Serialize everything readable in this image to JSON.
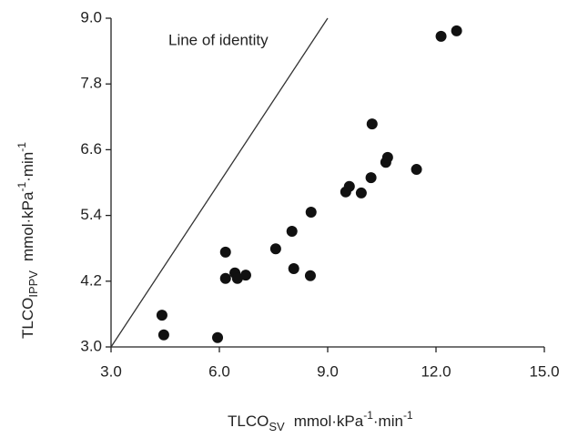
{
  "chart_data": {
    "type": "scatter",
    "x_label": {
      "main": "TLCO",
      "sub": "SV",
      "unit": "mmol·kPa",
      "exp1": "-1",
      "unit2": "·min",
      "exp2": "-1"
    },
    "y_label": {
      "main": "TLCO",
      "sub": "IPPV",
      "unit": "mmol·kPa",
      "exp1": "-1",
      "unit2": "·min",
      "exp2": "-1"
    },
    "annotation": "Line of identity",
    "color": "#111111",
    "x": [
      4.41,
      4.46,
      5.95,
      6.17,
      6.17,
      6.43,
      6.5,
      6.73,
      7.56,
      8.01,
      8.06,
      8.52,
      8.54,
      9.5,
      9.6,
      9.93,
      10.2,
      10.23,
      10.61,
      10.66,
      11.46,
      12.14,
      12.57
    ],
    "values": [
      3.58,
      3.22,
      3.17,
      4.73,
      4.25,
      4.35,
      4.25,
      4.31,
      4.79,
      5.11,
      4.43,
      4.3,
      5.46,
      5.83,
      5.93,
      5.81,
      6.09,
      7.07,
      6.37,
      6.46,
      6.24,
      8.67,
      8.77
    ],
    "xlim": [
      3,
      15
    ],
    "ylim": [
      3,
      9
    ],
    "xticks": [
      {
        "value": 3,
        "label": "3.0"
      },
      {
        "value": 6,
        "label": "6.0"
      },
      {
        "value": 9,
        "label": "9.0"
      },
      {
        "value": 12,
        "label": "12.0"
      },
      {
        "value": 15,
        "label": "15.0"
      }
    ],
    "yticks": [
      {
        "value": 3,
        "label": "3.0"
      },
      {
        "value": 4.2,
        "label": "4.2"
      },
      {
        "value": 5.4,
        "label": "5.4"
      },
      {
        "value": 6.6,
        "label": "6.6"
      },
      {
        "value": 7.8,
        "label": "7.8"
      },
      {
        "value": 9,
        "label": "9.0"
      }
    ]
  }
}
